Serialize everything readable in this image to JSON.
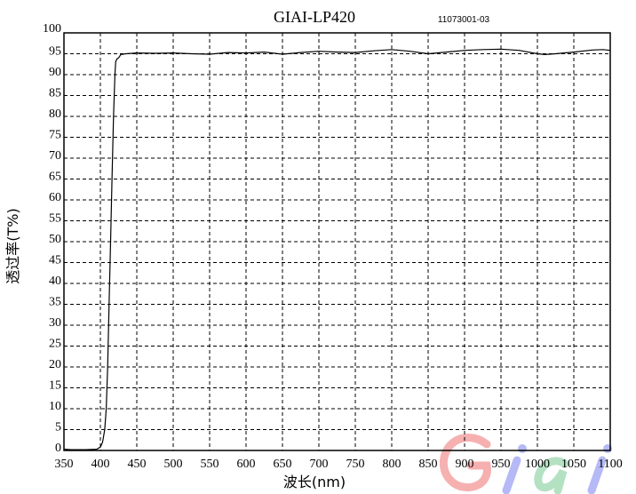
{
  "chart_data": {
    "type": "line",
    "title": "GIAI-LP420",
    "subtitle": "11073001-03",
    "xlabel": "波长(nm)",
    "ylabel": "透过率(T%)",
    "xlim": [
      350,
      1100
    ],
    "ylim": [
      0,
      100
    ],
    "xticks": [
      350,
      400,
      450,
      500,
      550,
      600,
      650,
      700,
      750,
      800,
      850,
      900,
      950,
      1000,
      1050,
      1100
    ],
    "yticks": [
      0,
      5,
      10,
      15,
      20,
      25,
      30,
      35,
      40,
      45,
      50,
      55,
      60,
      65,
      70,
      75,
      80,
      85,
      90,
      95,
      100
    ],
    "grid": true,
    "series": [
      {
        "color": "#000000",
        "x": [
          350,
          360,
          380,
          395,
          400,
          403,
          406,
          408,
          410,
          412,
          414,
          416,
          418,
          420,
          421,
          422,
          423,
          425,
          428,
          435,
          450,
          475,
          500,
          525,
          550,
          575,
          600,
          625,
          650,
          675,
          700,
          725,
          750,
          775,
          800,
          825,
          850,
          875,
          900,
          925,
          950,
          975,
          1000,
          1010,
          1025,
          1050,
          1075,
          1090,
          1100
        ],
        "y": [
          0.3,
          0.2,
          0.2,
          0.3,
          0.8,
          2,
          5,
          10,
          20,
          35,
          50,
          65,
          80,
          90,
          93,
          93.5,
          93.8,
          94,
          94.8,
          95,
          95.2,
          95.1,
          95.2,
          95.0,
          94.9,
          95.3,
          95.2,
          95.4,
          94.9,
          95.3,
          95.6,
          95.4,
          95.3,
          95.7,
          96.0,
          95.6,
          95.0,
          95.4,
          95.8,
          96.0,
          96.1,
          95.8,
          95.0,
          94.8,
          95.0,
          95.4,
          95.9,
          96.0,
          95.8
        ]
      }
    ]
  },
  "watermark": {
    "text": [
      "G",
      "i",
      "a",
      "i"
    ],
    "colors": [
      "#f5a3a3",
      "#a9adf5",
      "#a8dcb8",
      "#a9adf5"
    ]
  }
}
